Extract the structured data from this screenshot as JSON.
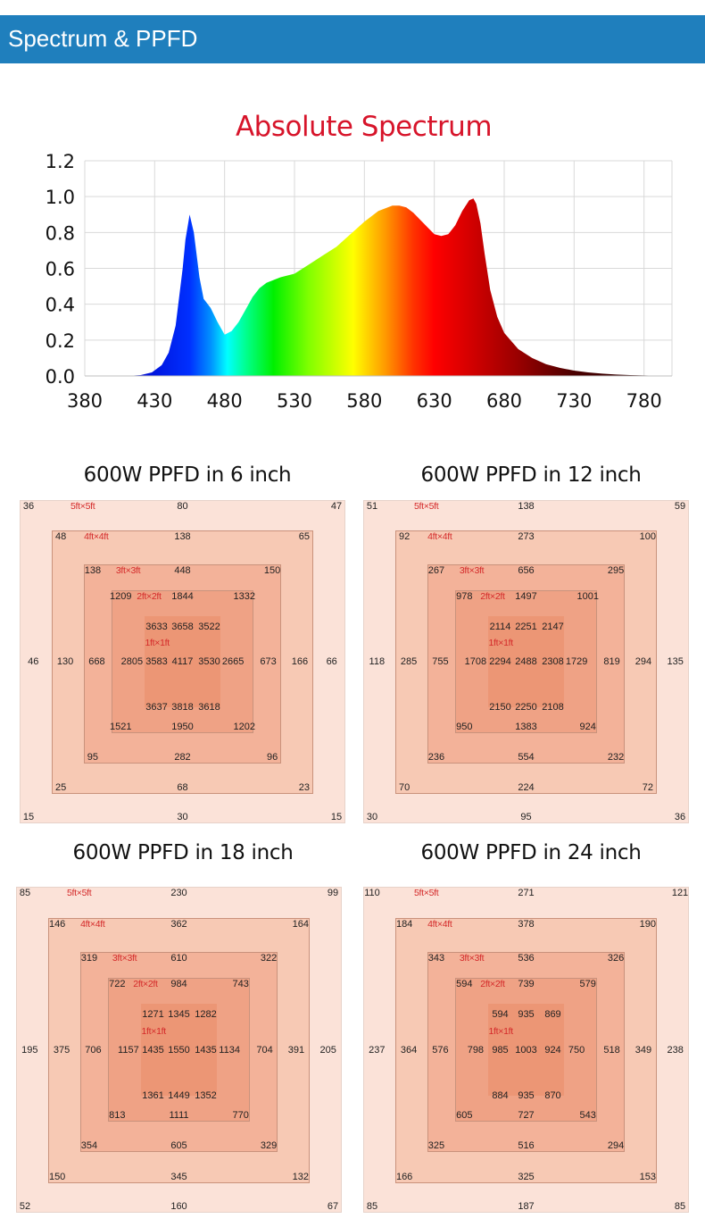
{
  "header": {
    "title": "Spectrum & PPFD",
    "background": "#1f7fbd"
  },
  "chart_data": [
    {
      "type": "area",
      "title": "Absolute Spectrum",
      "title_color": "#d7142a",
      "xlabel": "",
      "ylabel": "",
      "xlim": [
        380,
        800
      ],
      "ylim": [
        0.0,
        1.2
      ],
      "grid": true,
      "x_ticks": [
        "380",
        "430",
        "480",
        "530",
        "580",
        "630",
        "680",
        "730",
        "780"
      ],
      "y_ticks": [
        "0.0",
        "0.2",
        "0.4",
        "0.6",
        "0.8",
        "1.0",
        "1.2"
      ],
      "fill": "visible-spectrum color gradient",
      "series": [
        {
          "name": "Relative intensity",
          "x": [
            380,
            400,
            410,
            420,
            428,
            435,
            440,
            445,
            450,
            452,
            455,
            458,
            462,
            465,
            470,
            475,
            480,
            485,
            490,
            495,
            500,
            505,
            510,
            520,
            530,
            540,
            550,
            560,
            570,
            580,
            590,
            600,
            605,
            610,
            615,
            620,
            625,
            630,
            635,
            640,
            645,
            650,
            655,
            658,
            660,
            663,
            666,
            670,
            675,
            680,
            690,
            700,
            710,
            720,
            730,
            740,
            750,
            760,
            770,
            780,
            790,
            800
          ],
          "y": [
            0.0,
            0.0,
            0.0,
            0.005,
            0.02,
            0.06,
            0.13,
            0.28,
            0.6,
            0.76,
            0.9,
            0.8,
            0.55,
            0.43,
            0.38,
            0.3,
            0.23,
            0.25,
            0.3,
            0.37,
            0.44,
            0.49,
            0.52,
            0.55,
            0.57,
            0.62,
            0.67,
            0.72,
            0.79,
            0.86,
            0.92,
            0.95,
            0.95,
            0.94,
            0.91,
            0.87,
            0.83,
            0.79,
            0.78,
            0.79,
            0.84,
            0.92,
            0.98,
            0.99,
            0.96,
            0.85,
            0.68,
            0.48,
            0.33,
            0.24,
            0.15,
            0.1,
            0.065,
            0.045,
            0.03,
            0.02,
            0.013,
            0.008,
            0.005,
            0.003,
            0.001,
            0.0
          ]
        }
      ]
    },
    {
      "type": "table",
      "title": "600W PPFD in 6 inch",
      "unit": "PPFD",
      "zones": [
        "5ft×5ft",
        "4ft×4ft",
        "3ft×3ft",
        "2ft×2ft",
        "1ft×1ft"
      ],
      "rings": [
        {
          "label": "5ft×5ft",
          "top": [
            "36",
            "80",
            "47"
          ],
          "bottom": [
            "15",
            "30",
            "15"
          ]
        },
        {
          "label": "4ft×4ft",
          "top": [
            "48",
            "138",
            "65"
          ],
          "bottom": [
            "25",
            "68",
            "23"
          ]
        },
        {
          "label": "3ft×3ft",
          "top": [
            "138",
            "448",
            "150"
          ],
          "bottom": [
            "95",
            "282",
            "96"
          ]
        },
        {
          "label": "2ft×2ft",
          "top": [
            "1209",
            "1844",
            "1332"
          ],
          "bottom": [
            "1521",
            "1950",
            "1202"
          ]
        }
      ],
      "center": {
        "label": "1ft×1ft",
        "rows": [
          [
            "3633",
            "3658",
            "3522"
          ],
          [
            "3583",
            "4117",
            "3530"
          ],
          [
            "3637",
            "3818",
            "3618"
          ]
        ]
      },
      "middle_row": {
        "left": [
          "46",
          "130",
          "668",
          "2805"
        ],
        "right": [
          "2665",
          "673",
          "166",
          "66"
        ]
      }
    },
    {
      "type": "table",
      "title": "600W PPFD in 12 inch",
      "unit": "PPFD",
      "zones": [
        "5ft×5ft",
        "4ft×4ft",
        "3ft×3ft",
        "2ft×2ft",
        "1ft×1ft"
      ],
      "rings": [
        {
          "label": "5ft×5ft",
          "top": [
            "51",
            "138",
            "59"
          ],
          "bottom": [
            "30",
            "95",
            "36"
          ]
        },
        {
          "label": "4ft×4ft",
          "top": [
            "92",
            "273",
            "100"
          ],
          "bottom": [
            "70",
            "224",
            "72"
          ]
        },
        {
          "label": "3ft×3ft",
          "top": [
            "267",
            "656",
            "295"
          ],
          "bottom": [
            "236",
            "554",
            "232"
          ]
        },
        {
          "label": "2ft×2ft",
          "top": [
            "978",
            "1497",
            "1001"
          ],
          "bottom": [
            "950",
            "1383",
            "924"
          ]
        }
      ],
      "center": {
        "label": "1ft×1ft",
        "rows": [
          [
            "2114",
            "2251",
            "2147"
          ],
          [
            "2294",
            "2488",
            "2308"
          ],
          [
            "2150",
            "2250",
            "2108"
          ]
        ]
      },
      "middle_row": {
        "left": [
          "118",
          "285",
          "755",
          "1708"
        ],
        "right": [
          "1729",
          "819",
          "294",
          "135"
        ]
      }
    },
    {
      "type": "table",
      "title": "600W PPFD in 18 inch",
      "unit": "PPFD",
      "zones": [
        "5ft×5ft",
        "4ft×4ft",
        "3ft×3ft",
        "2ft×2ft",
        "1ft×1ft"
      ],
      "rings": [
        {
          "label": "5ft×5ft",
          "top": [
            "85",
            "230",
            "99"
          ],
          "bottom": [
            "52",
            "160",
            "67"
          ]
        },
        {
          "label": "4ft×4ft",
          "top": [
            "146",
            "362",
            "164"
          ],
          "bottom": [
            "150",
            "345",
            "132"
          ]
        },
        {
          "label": "3ft×3ft",
          "top": [
            "319",
            "610",
            "322"
          ],
          "bottom": [
            "354",
            "605",
            "329"
          ]
        },
        {
          "label": "2ft×2ft",
          "top": [
            "722",
            "984",
            "743"
          ],
          "bottom": [
            "813",
            "1111",
            "770"
          ]
        }
      ],
      "center": {
        "label": "1ft×1ft",
        "rows": [
          [
            "1271",
            "1345",
            "1282"
          ],
          [
            "1435",
            "1550",
            "1435"
          ],
          [
            "1361",
            "1449",
            "1352"
          ]
        ]
      },
      "middle_row": {
        "left": [
          "195",
          "375",
          "706",
          "1157"
        ],
        "right": [
          "1134",
          "704",
          "391",
          "205"
        ]
      }
    },
    {
      "type": "table",
      "title": "600W PPFD in 24 inch",
      "unit": "PPFD",
      "zones": [
        "5ft×5ft",
        "4ft×4ft",
        "3ft×3ft",
        "2ft×2ft",
        "1ft×1ft"
      ],
      "rings": [
        {
          "label": "5ft×5ft",
          "top": [
            "110",
            "271",
            "121"
          ],
          "bottom": [
            "85",
            "187",
            "85"
          ]
        },
        {
          "label": "4ft×4ft",
          "top": [
            "184",
            "378",
            "190"
          ],
          "bottom": [
            "166",
            "325",
            "153"
          ]
        },
        {
          "label": "3ft×3ft",
          "top": [
            "343",
            "536",
            "326"
          ],
          "bottom": [
            "325",
            "516",
            "294"
          ]
        },
        {
          "label": "2ft×2ft",
          "top": [
            "594",
            "739",
            "579"
          ],
          "bottom": [
            "605",
            "727",
            "543"
          ]
        }
      ],
      "center": {
        "label": "1ft×1ft",
        "rows": [
          [
            "594",
            "935",
            "869"
          ],
          [
            "985",
            "1003",
            "924"
          ],
          [
            "884",
            "935",
            "870"
          ]
        ]
      },
      "middle_row": {
        "left": [
          "237",
          "364",
          "576",
          "798"
        ],
        "right": [
          "750",
          "518",
          "349",
          "238"
        ]
      }
    }
  ],
  "zone_colors": [
    "#fbe2d8",
    "#f7c9b4",
    "#f3b299",
    "#efa285",
    "#ec9675"
  ],
  "label_color": "#d42a2a"
}
